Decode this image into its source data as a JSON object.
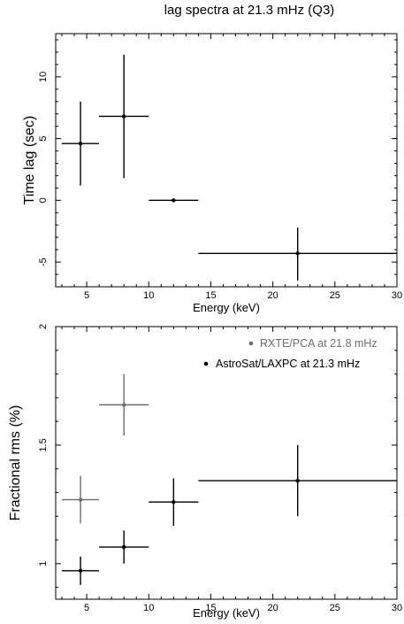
{
  "chart_data": [
    {
      "type": "scatter",
      "title": "lag spectra at 21.3 mHz (Q3)",
      "xlabel": "Energy (keV)",
      "ylabel": "Time lag (sec)",
      "xlim": [
        2.5,
        30
      ],
      "ylim": [
        -7,
        13.5
      ],
      "xticks": [
        5,
        10,
        15,
        20,
        25,
        30
      ],
      "yticks": [
        -5,
        0,
        5,
        10
      ],
      "grid": false,
      "series": [
        {
          "color": "#000000",
          "points": [
            {
              "x": 4.5,
              "xlo": 3.0,
              "xhi": 6.0,
              "y": 4.6,
              "ylo": 1.2,
              "yhi": 8.0
            },
            {
              "x": 8.0,
              "xlo": 6.0,
              "xhi": 10.0,
              "y": 6.8,
              "ylo": 1.8,
              "yhi": 11.8
            },
            {
              "x": 12.0,
              "xlo": 10.0,
              "xhi": 14.0,
              "y": 0.0,
              "ylo": 0.0,
              "yhi": 0.0
            },
            {
              "x": 22.0,
              "xlo": 14.0,
              "xhi": 30.0,
              "y": -4.3,
              "ylo": -6.5,
              "yhi": -2.2
            }
          ]
        }
      ]
    },
    {
      "type": "scatter",
      "title": "",
      "xlabel": "Energy (keV)",
      "ylabel": "Fractional rms (%)",
      "xlim": [
        2.5,
        30
      ],
      "ylim": [
        0.85,
        2.0
      ],
      "xticks": [
        5,
        10,
        15,
        20,
        25,
        30
      ],
      "yticks": [
        1,
        1.5,
        2
      ],
      "grid": false,
      "legend_position": "top-right",
      "series": [
        {
          "name": "RXTE/PCA at  21.8 mHz",
          "color": "#6e6e6e",
          "points": [
            {
              "x": 4.5,
              "xlo": 3.0,
              "xhi": 6.0,
              "y": 1.27,
              "ylo": 1.17,
              "yhi": 1.37
            },
            {
              "x": 8.0,
              "xlo": 6.0,
              "xhi": 10.0,
              "y": 1.67,
              "ylo": 1.54,
              "yhi": 1.8
            }
          ]
        },
        {
          "name": "AstroSat/LAXPC at 21.3 mHz",
          "color": "#000000",
          "points": [
            {
              "x": 4.5,
              "xlo": 3.0,
              "xhi": 6.0,
              "y": 0.97,
              "ylo": 0.91,
              "yhi": 1.03
            },
            {
              "x": 8.0,
              "xlo": 6.0,
              "xhi": 10.0,
              "y": 1.07,
              "ylo": 1.0,
              "yhi": 1.14
            },
            {
              "x": 12.0,
              "xlo": 10.0,
              "xhi": 14.0,
              "y": 1.26,
              "ylo": 1.16,
              "yhi": 1.36
            },
            {
              "x": 22.0,
              "xlo": 14.0,
              "xhi": 30.0,
              "y": 1.35,
              "ylo": 1.2,
              "yhi": 1.5
            }
          ]
        }
      ]
    }
  ]
}
